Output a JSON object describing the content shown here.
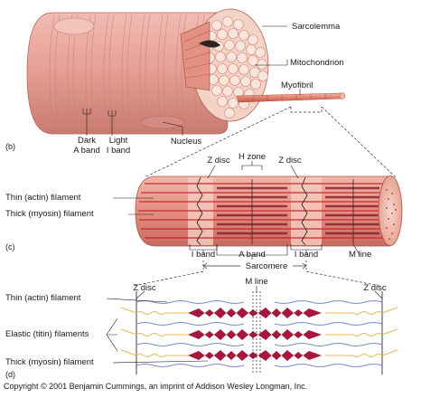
{
  "figure": {
    "panels": {
      "b": "(b)",
      "c": "(c)",
      "d": "(d)"
    },
    "panel_b": {
      "sarcolemma": "Sarcolemma",
      "mitochondrion": "Mitochondrion",
      "myofibril": "Myofibril",
      "dark_a_band": "Dark\nA band",
      "light_i_band": "Light\nI band",
      "nucleus": "Nucleus"
    },
    "panel_c": {
      "z_disc_left": "Z disc",
      "h_zone": "H zone",
      "z_disc_right": "Z disc",
      "thin_filament": "Thin (actin) filament",
      "thick_filament": "Thick (myosin) filament",
      "i_band_left": "I band",
      "a_band": "A band",
      "i_band_right": "I band",
      "m_line": "M line",
      "sarcomere": "Sarcomere"
    },
    "panel_d": {
      "z_disc_left": "Z disc",
      "m_line": "M line",
      "z_disc_right": "Z disc",
      "thin_filament": "Thin (actin) filament",
      "elastic_filaments": "Elastic (titin) filaments",
      "thick_filament": "Thick (myosin) filament"
    },
    "copyright": "Copyright © 2001 Benjamin Cummings, an imprint of Addison Wesley Longman, Inc."
  },
  "colors": {
    "muscle_fiber": "#e8a29a",
    "myofibril": "#e4937f",
    "actin": "#c4262f",
    "myosin": "#a8163d",
    "titin": "#e8b84a",
    "zdisc": "#3a3a3a"
  }
}
